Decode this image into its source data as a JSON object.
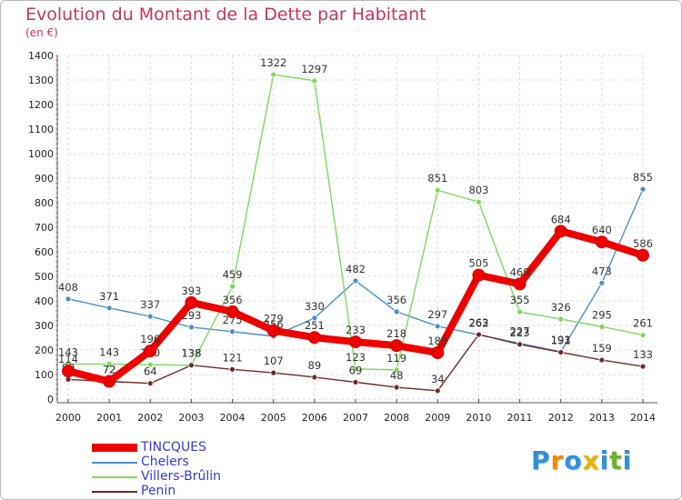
{
  "title": "Evolution du Montant de la Dette par Habitant",
  "unit": "(en €)",
  "brand": {
    "letters": [
      "P",
      "r",
      "o",
      "x",
      "i",
      "t",
      "i"
    ],
    "colors": [
      "#2f8fd8",
      "#f08a00",
      "#2f8fd8",
      "#e8b400",
      "#2f8fd8",
      "#6ab42a",
      "#2f8fd8"
    ]
  },
  "chart_data": {
    "type": "line",
    "x": [
      "2000",
      "2001",
      "2002",
      "2003",
      "2004",
      "2005",
      "2006",
      "2007",
      "2008",
      "2009",
      "2010",
      "2011",
      "2012",
      "2013",
      "2014"
    ],
    "ylim": [
      0,
      1400
    ],
    "yticks": [
      "0",
      "100",
      "200",
      "300",
      "400",
      "500",
      "600",
      "700",
      "800",
      "900",
      "1000",
      "1100",
      "1200",
      "1300",
      "1400"
    ],
    "grid": true,
    "legend_position": "bottom-left",
    "series": [
      {
        "name": "Chelers",
        "color": "#4d8ec9",
        "values": [
          408,
          371,
          337,
          293,
          275,
          256,
          330,
          482,
          356,
          297,
          262,
          227,
          193,
          473,
          855
        ],
        "labels": [
          "408",
          "371",
          "337",
          "293",
          "275",
          "256",
          "330",
          "482",
          "356",
          "297",
          "262",
          "227",
          "193",
          "473",
          "855"
        ]
      },
      {
        "name": "Villers-Brûlin",
        "color": "#80d65b",
        "values": [
          143,
          143,
          140,
          138,
          459,
          1322,
          1297,
          123,
          119,
          851,
          803,
          355,
          326,
          295,
          261
        ],
        "labels": [
          "143",
          "143",
          "140",
          "138",
          "459",
          "1322",
          "1297",
          "123",
          "119",
          "851",
          "803",
          "355",
          "326",
          "295",
          "261"
        ]
      },
      {
        "name": "Penin",
        "color": "#6b2b2b",
        "values": [
          80,
          72,
          64,
          138,
          121,
          107,
          89,
          69,
          48,
          34,
          263,
          223,
          191,
          159,
          133
        ],
        "labels": [
          "80",
          "72",
          "64",
          "138",
          "121",
          "107",
          "89",
          "69",
          "48",
          "34",
          "263",
          "223",
          "191",
          "159",
          "133"
        ]
      },
      {
        "name": "TINCQUES",
        "color": "#ee0000",
        "values": [
          114,
          72,
          196,
          393,
          356,
          279,
          251,
          233,
          218,
          189,
          505,
          469,
          684,
          640,
          586
        ],
        "labels": [
          "114",
          "72",
          "196",
          "393",
          "356",
          "279",
          "251",
          "233",
          "218",
          "189",
          "505",
          "469",
          "684",
          "640",
          "586"
        ]
      }
    ],
    "legend_order": [
      3,
      0,
      1,
      2
    ]
  }
}
